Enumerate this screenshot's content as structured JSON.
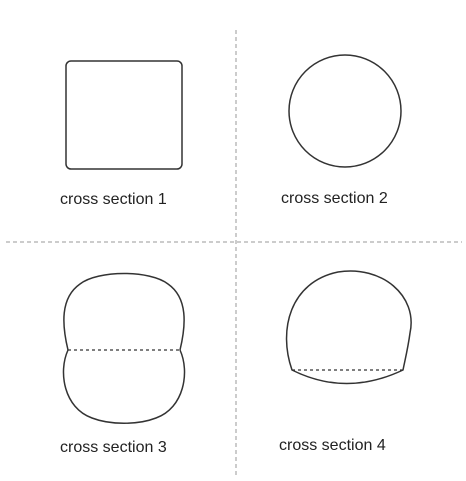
{
  "sections": [
    {
      "id": "1",
      "label": "cross section 1",
      "shape": "square"
    },
    {
      "id": "2",
      "label": "cross section 2",
      "shape": "circle"
    },
    {
      "id": "3",
      "label": "cross section 3",
      "shape": "two-lobed-figure-eight"
    },
    {
      "id": "4",
      "label": "cross section 4",
      "shape": "truncated-circle"
    }
  ],
  "colors": {
    "outline": "#333333",
    "divider": "#999999",
    "background": "#ffffff",
    "text": "#222222"
  }
}
